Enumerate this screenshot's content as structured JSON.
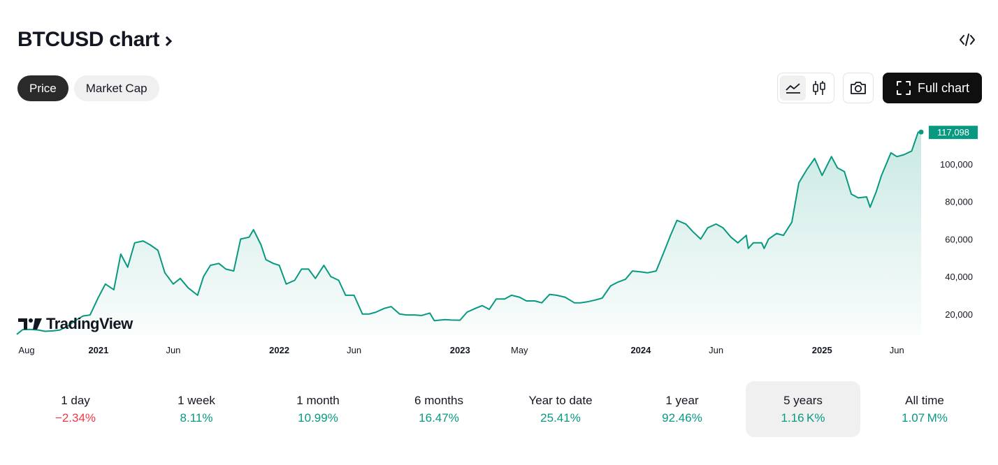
{
  "header": {
    "title": "BTCUSD chart"
  },
  "tabs": [
    {
      "label": "Price",
      "active": true
    },
    {
      "label": "Market Cap",
      "active": false
    }
  ],
  "toolbar": {
    "full_chart_label": "Full chart",
    "active_style": "area"
  },
  "logo": {
    "text": "TradingView"
  },
  "chart_data": {
    "type": "area",
    "title": "",
    "xlabel": "",
    "ylabel": "",
    "ylim": [
      8000,
      122000
    ],
    "y_ticks": [
      20000,
      40000,
      60000,
      80000,
      100000
    ],
    "y_tick_labels": [
      "20,000",
      "40,000",
      "60,000",
      "80,000",
      "100,000"
    ],
    "x_ticks": [
      {
        "label": "Aug",
        "x": "2020-08-01",
        "bold": false
      },
      {
        "label": "2021",
        "x": "2021-01-01",
        "bold": true
      },
      {
        "label": "Jun",
        "x": "2021-06-01",
        "bold": false
      },
      {
        "label": "2022",
        "x": "2022-01-01",
        "bold": true
      },
      {
        "label": "Jun",
        "x": "2022-06-01",
        "bold": false
      },
      {
        "label": "2023",
        "x": "2023-01-01",
        "bold": true
      },
      {
        "label": "May",
        "x": "2023-05-01",
        "bold": false
      },
      {
        "label": "2024",
        "x": "2024-01-01",
        "bold": true
      },
      {
        "label": "Jun",
        "x": "2024-06-01",
        "bold": false
      },
      {
        "label": "2025",
        "x": "2025-01-01",
        "bold": true
      },
      {
        "label": "Jun",
        "x": "2025-06-01",
        "bold": false
      }
    ],
    "last_price_label": "117,098",
    "line_color": "#089981",
    "series": [
      {
        "x": [
          "2020-07-20",
          "2020-08-01",
          "2020-08-15",
          "2020-09-01",
          "2020-09-15",
          "2020-10-01",
          "2020-10-15",
          "2020-11-01",
          "2020-11-15",
          "2020-12-01",
          "2020-12-15",
          "2021-01-01",
          "2021-01-15",
          "2021-02-01",
          "2021-02-15",
          "2021-03-01",
          "2021-03-15",
          "2021-04-01",
          "2021-04-15",
          "2021-05-01",
          "2021-05-15",
          "2021-06-01",
          "2021-06-15",
          "2021-07-01",
          "2021-07-20",
          "2021-08-01",
          "2021-08-15",
          "2021-09-01",
          "2021-09-15",
          "2021-10-01",
          "2021-10-15",
          "2021-11-01",
          "2021-11-10",
          "2021-11-25",
          "2021-12-05",
          "2021-12-20",
          "2022-01-01",
          "2022-01-15",
          "2022-02-01",
          "2022-02-15",
          "2022-03-01",
          "2022-03-15",
          "2022-04-01",
          "2022-04-15",
          "2022-05-01",
          "2022-05-15",
          "2022-06-01",
          "2022-06-18",
          "2022-07-01",
          "2022-07-15",
          "2022-08-01",
          "2022-08-15",
          "2022-09-01",
          "2022-09-15",
          "2022-10-01",
          "2022-10-15",
          "2022-11-01",
          "2022-11-10",
          "2022-12-01",
          "2022-12-15",
          "2023-01-01",
          "2023-01-15",
          "2023-02-01",
          "2023-02-15",
          "2023-03-01",
          "2023-03-15",
          "2023-04-01",
          "2023-04-15",
          "2023-05-01",
          "2023-05-15",
          "2023-06-01",
          "2023-06-15",
          "2023-07-01",
          "2023-07-15",
          "2023-08-01",
          "2023-08-20",
          "2023-09-01",
          "2023-09-15",
          "2023-10-01",
          "2023-10-15",
          "2023-11-01",
          "2023-11-15",
          "2023-12-01",
          "2023-12-15",
          "2024-01-01",
          "2024-01-15",
          "2024-02-01",
          "2024-02-15",
          "2024-03-01",
          "2024-03-14",
          "2024-04-01",
          "2024-04-15",
          "2024-05-01",
          "2024-05-15",
          "2024-06-01",
          "2024-06-15",
          "2024-07-01",
          "2024-07-15",
          "2024-08-01",
          "2024-08-05",
          "2024-08-15",
          "2024-09-01",
          "2024-09-06",
          "2024-09-15",
          "2024-10-01",
          "2024-10-15",
          "2024-11-01",
          "2024-11-15",
          "2024-12-01",
          "2024-12-17",
          "2025-01-01",
          "2025-01-20",
          "2025-02-01",
          "2025-02-15",
          "2025-03-01",
          "2025-03-15",
          "2025-04-01",
          "2025-04-08",
          "2025-04-20",
          "2025-05-01",
          "2025-05-20",
          "2025-06-01",
          "2025-06-15",
          "2025-07-01",
          "2025-07-14",
          "2025-07-20"
        ],
        "values": [
          9200,
          11700,
          11800,
          11500,
          10800,
          11000,
          11500,
          13700,
          16500,
          19000,
          19500,
          29000,
          36000,
          33000,
          52000,
          45000,
          58000,
          59000,
          57000,
          54000,
          42000,
          36000,
          39000,
          34000,
          30000,
          40000,
          46000,
          47000,
          44000,
          43000,
          60000,
          61000,
          65000,
          57000,
          49000,
          47000,
          46000,
          36000,
          38000,
          44000,
          44000,
          39000,
          46000,
          40000,
          38000,
          30000,
          30000,
          20000,
          20000,
          21000,
          23000,
          24000,
          20000,
          19500,
          19500,
          19200,
          20500,
          16500,
          17000,
          16800,
          16700,
          21000,
          23000,
          24500,
          22500,
          28000,
          28000,
          30000,
          29000,
          27000,
          27000,
          26000,
          30500,
          30000,
          29000,
          26000,
          26000,
          26500,
          27500,
          28500,
          35000,
          37000,
          38500,
          43000,
          42500,
          42000,
          43000,
          52000,
          62000,
          70000,
          68000,
          64000,
          60000,
          66000,
          68000,
          66000,
          61000,
          58000,
          62000,
          55000,
          58000,
          58000,
          55000,
          60000,
          63000,
          62000,
          69000,
          90000,
          97000,
          103000,
          94000,
          104000,
          98000,
          96000,
          84000,
          82000,
          82500,
          77000,
          85000,
          94000,
          106000,
          104000,
          105000,
          107000,
          117000,
          117098
        ]
      }
    ]
  },
  "periods": [
    {
      "label": "1 day",
      "value": "−2.34%",
      "sign": "neg"
    },
    {
      "label": "1 week",
      "value": "8.11%",
      "sign": "pos"
    },
    {
      "label": "1 month",
      "value": "10.99%",
      "sign": "pos"
    },
    {
      "label": "6 months",
      "value": "16.47%",
      "sign": "pos"
    },
    {
      "label": "Year to date",
      "value": "25.41%",
      "sign": "pos"
    },
    {
      "label": "1 year",
      "value": "92.46%",
      "sign": "pos"
    },
    {
      "label": "5 years",
      "value": "1.16 K%",
      "sign": "pos",
      "active": true
    },
    {
      "label": "All time",
      "value": "1.07 M%",
      "sign": "pos"
    }
  ]
}
